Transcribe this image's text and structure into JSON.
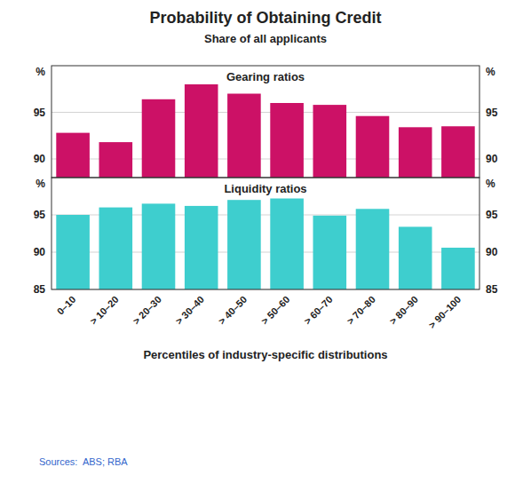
{
  "chart_data": [
    {
      "type": "bar",
      "title": "Probability of Obtaining Credit",
      "subtitle": "Share of all applicants",
      "categories": [
        "0–10",
        "> 10–20",
        "> 20–30",
        "> 30–40",
        "> 40–50",
        "> 50–60",
        "> 60–70",
        "> 70–80",
        "> 80–90",
        "> 90–100"
      ],
      "series": [
        {
          "name": "Gearing ratios",
          "color": "#CC1166",
          "values": [
            92.8,
            91.8,
            96.4,
            98.0,
            97.0,
            96.0,
            95.8,
            94.6,
            93.4,
            93.5
          ]
        }
      ],
      "ylabel": "%",
      "ylim": [
        88,
        100
      ],
      "yticks": [
        90,
        95
      ],
      "grid": true,
      "tick_labels": "y"
    },
    {
      "type": "bar",
      "xlabel": "Percentiles of industry-specific distributions",
      "annotations": [
        "Sources:  ABS; RBA"
      ],
      "categories": [
        "0–10",
        "> 10–20",
        "> 20–30",
        "> 30–40",
        "> 40–50",
        "> 50–60",
        "> 60–70",
        "> 70–80",
        "> 80–90",
        "> 90–100"
      ],
      "series": [
        {
          "name": "Liquidity ratios",
          "color": "#3ECECE",
          "values": [
            95.0,
            96.0,
            96.5,
            96.2,
            97.0,
            97.2,
            94.9,
            95.8,
            93.4,
            90.6
          ]
        }
      ],
      "ylabel": "%",
      "ylim": [
        85,
        100
      ],
      "yticks": [
        85,
        90,
        95
      ],
      "grid": true
    }
  ]
}
